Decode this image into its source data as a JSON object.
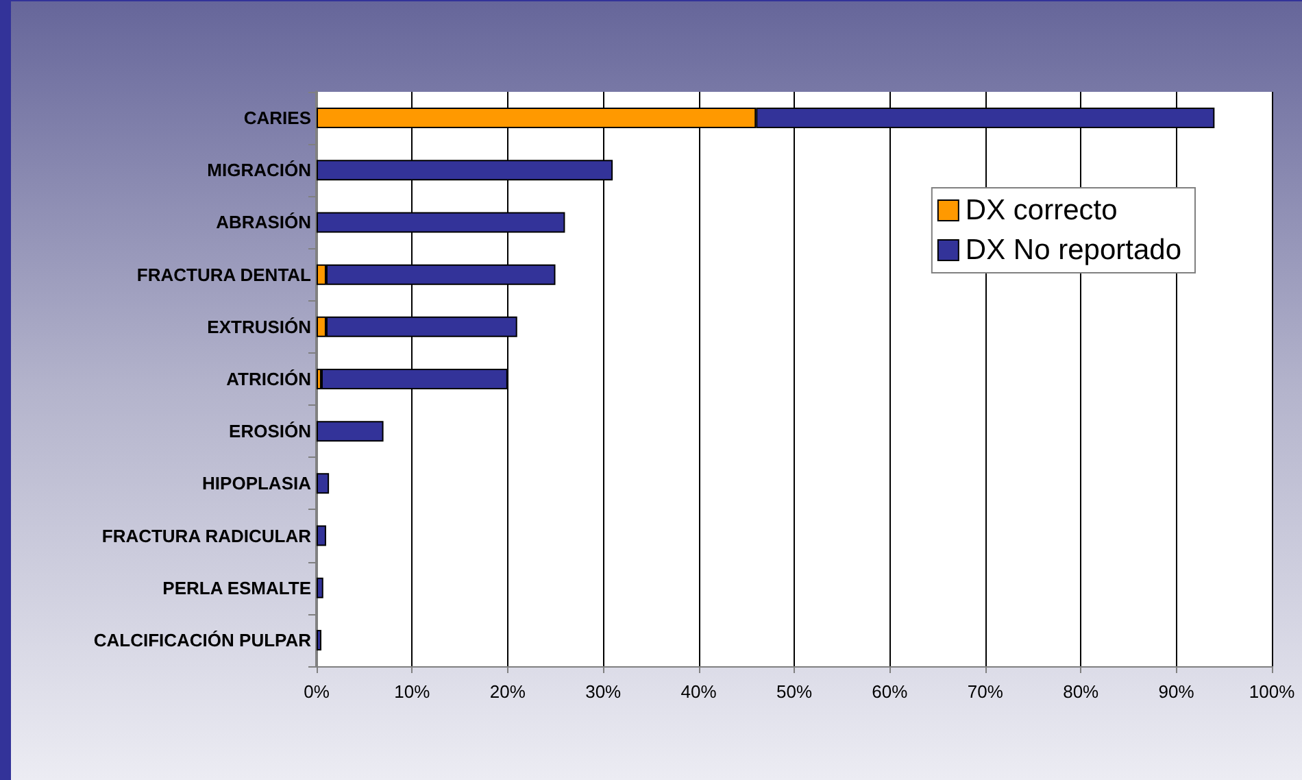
{
  "chart_data": {
    "type": "bar",
    "orientation": "horizontal",
    "stacked": true,
    "categories": [
      "CARIES",
      "MIGRACIÓN",
      "ABRASIÓN",
      "FRACTURA DENTAL",
      "EXTRUSIÓN",
      "ATRICIÓN",
      "EROSIÓN",
      "HIPOPLASIA",
      "FRACTURA RADICULAR",
      "PERLA ESMALTE",
      "CALCIFICACIÓN PULPAR"
    ],
    "series": [
      {
        "name": "DX correcto",
        "color": "#ff9900",
        "values": [
          46,
          null,
          null,
          1,
          1,
          0.5,
          null,
          null,
          null,
          null,
          null
        ]
      },
      {
        "name": "DX No reportado",
        "color": "#333399",
        "values": [
          48,
          31,
          26,
          24,
          20,
          19.5,
          7,
          1.3,
          1,
          0.7,
          0.5
        ]
      }
    ],
    "xlim": [
      0,
      100
    ],
    "xticks": [
      {
        "value": 0,
        "label": "0%"
      },
      {
        "value": 10,
        "label": "10%"
      },
      {
        "value": 20,
        "label": "20%"
      },
      {
        "value": 30,
        "label": "30%"
      },
      {
        "value": 40,
        "label": "40%"
      },
      {
        "value": 50,
        "label": "50%"
      },
      {
        "value": 60,
        "label": "60%"
      },
      {
        "value": 70,
        "label": "70%"
      },
      {
        "value": 80,
        "label": "80%"
      },
      {
        "value": 90,
        "label": "90%"
      },
      {
        "value": 100,
        "label": "100%"
      }
    ],
    "grid": "x",
    "legend": "top right"
  }
}
